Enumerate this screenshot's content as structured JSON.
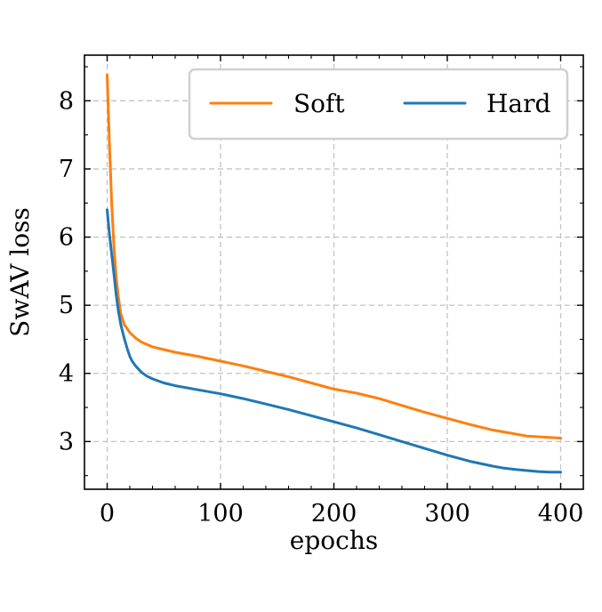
{
  "chart_data": {
    "type": "line",
    "title": "",
    "xlabel": "epochs",
    "ylabel": "SwAV loss",
    "xlim": [
      -20,
      420
    ],
    "ylim": [
      2.3,
      8.67
    ],
    "x_ticks": [
      0,
      100,
      200,
      300,
      400
    ],
    "y_ticks": [
      3,
      4,
      5,
      6,
      7,
      8
    ],
    "x_tick_labels": [
      "0",
      "100",
      "200",
      "300",
      "400"
    ],
    "y_tick_labels": [
      "3",
      "4",
      "5",
      "6",
      "7",
      "8"
    ],
    "grid": true,
    "legend": {
      "placement": "top-right",
      "columns": 2
    },
    "series": [
      {
        "name": "Soft",
        "color": "#ff7f0e",
        "x": [
          0,
          2,
          4,
          6,
          8,
          10,
          12,
          15,
          20,
          25,
          30,
          40,
          50,
          60,
          80,
          100,
          120,
          140,
          160,
          180,
          200,
          210,
          220,
          240,
          260,
          280,
          300,
          320,
          340,
          360,
          370,
          380,
          390,
          400
        ],
        "values": [
          8.38,
          7.4,
          6.5,
          5.85,
          5.4,
          5.1,
          4.88,
          4.72,
          4.6,
          4.52,
          4.46,
          4.39,
          4.35,
          4.31,
          4.25,
          4.18,
          4.11,
          4.03,
          3.95,
          3.86,
          3.77,
          3.74,
          3.71,
          3.63,
          3.53,
          3.43,
          3.34,
          3.25,
          3.17,
          3.11,
          3.08,
          3.07,
          3.06,
          3.05
        ]
      },
      {
        "name": "Hard",
        "color": "#1f77b4",
        "x": [
          0,
          2,
          4,
          6,
          8,
          10,
          12,
          15,
          18,
          20,
          22,
          25,
          30,
          35,
          40,
          50,
          60,
          80,
          100,
          120,
          140,
          160,
          180,
          200,
          220,
          240,
          260,
          280,
          300,
          320,
          340,
          350,
          360,
          380,
          390,
          400
        ],
        "values": [
          6.4,
          6.05,
          5.75,
          5.45,
          5.15,
          4.9,
          4.72,
          4.52,
          4.35,
          4.25,
          4.18,
          4.11,
          4.02,
          3.96,
          3.92,
          3.86,
          3.82,
          3.76,
          3.7,
          3.63,
          3.55,
          3.47,
          3.38,
          3.29,
          3.2,
          3.1,
          3.0,
          2.9,
          2.8,
          2.71,
          2.64,
          2.61,
          2.59,
          2.56,
          2.55,
          2.55
        ]
      }
    ]
  }
}
